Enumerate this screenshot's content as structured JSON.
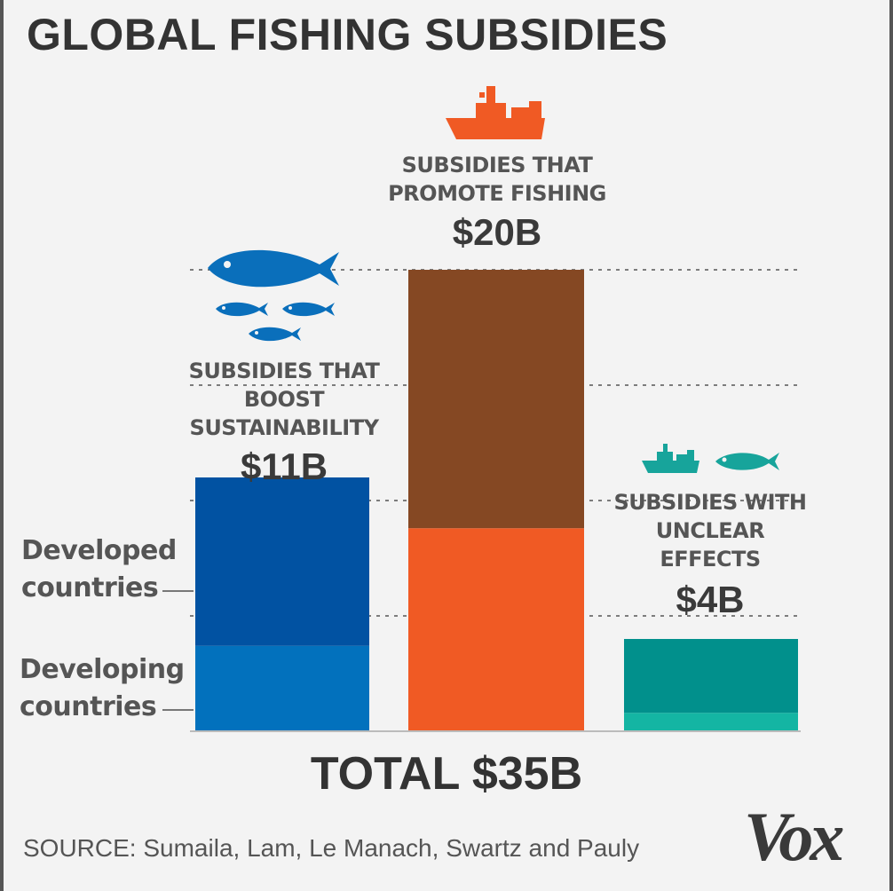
{
  "title": "GLOBAL FISHING SUBSIDIES",
  "total_label": "TOTAL $35B",
  "source": "SOURCE: Sumaila, Lam, Le Manach, Swartz and Pauly",
  "brand": "Vox",
  "legend": {
    "developed": "Developed\ncountries",
    "developing": "Developing\ncountries"
  },
  "categories": [
    {
      "label": "SUBSIDIES THAT\nBOOST\nSUSTAINABILITY",
      "value_label": "$11B",
      "icon": "fish-school-icon"
    },
    {
      "label": "SUBSIDIES THAT\nPROMOTE FISHING",
      "value_label": "$20B",
      "icon": "fishing-ship-icon"
    },
    {
      "label": "SUBSIDIES WITH\nUNCLEAR\nEFFECTS",
      "value_label": "$4B",
      "icon": "ship-and-fish-icon"
    }
  ],
  "colors": {
    "sustain_developed": "#0152a2",
    "sustain_developing": "#0271bd",
    "promote_developed": "#854823",
    "promote_developing": "#f05a24",
    "unclear_developed": "#01908c",
    "unclear_developing": "#14b5a3",
    "blue_icon": "#0a6fbb",
    "orange_icon": "#f05a24",
    "teal_icon": "#17a49b"
  },
  "chart_data": {
    "type": "bar",
    "stacked": true,
    "categories": [
      "SUBSIDIES THAT BOOST SUSTAINABILITY",
      "SUBSIDIES THAT PROMOTE FISHING",
      "SUBSIDIES WITH UNCLEAR EFFECTS"
    ],
    "series": [
      {
        "name": "Developing countries",
        "values": [
          3.7,
          8.8,
          0.8
        ]
      },
      {
        "name": "Developed countries",
        "values": [
          7.3,
          11.2,
          3.2
        ]
      }
    ],
    "totals": [
      11,
      20,
      4
    ],
    "ylim": [
      0,
      22
    ],
    "gridlines": [
      5,
      10,
      15,
      20
    ],
    "grid": true,
    "units": "billion USD"
  }
}
